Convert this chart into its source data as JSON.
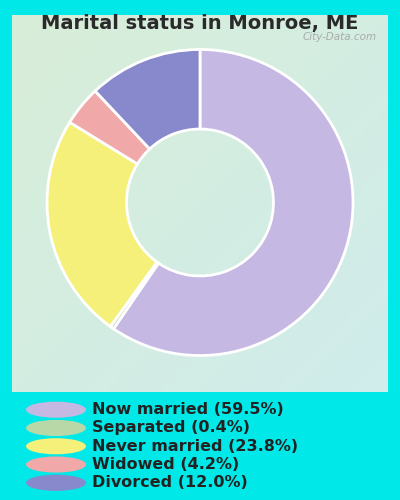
{
  "title": "Marital status in Monroe, ME",
  "slices": [
    59.5,
    0.4,
    23.8,
    4.2,
    12.0
  ],
  "labels": [
    "Now married (59.5%)",
    "Separated (0.4%)",
    "Never married (23.8%)",
    "Widowed (4.2%)",
    "Divorced (12.0%)"
  ],
  "colors": [
    "#c5b8e3",
    "#b8d8a8",
    "#f5f07a",
    "#f0a8a8",
    "#8888cc"
  ],
  "background_outer": "#00e8e8",
  "background_inner_start": "#d8eed8",
  "background_inner_end": "#d0ecec",
  "title_fontsize": 14,
  "legend_fontsize": 11.5,
  "watermark": "City-Data.com",
  "donut_width": 0.52,
  "startangle": 90
}
